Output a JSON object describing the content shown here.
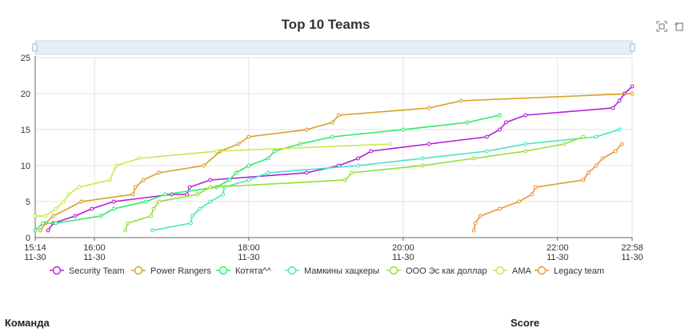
{
  "footer": {
    "team_header": "Команда",
    "score_header": "Score"
  },
  "toolbox": {
    "zoom_icon": "zoom-icon",
    "restore_icon": "restore-icon"
  },
  "chart_data": {
    "type": "line",
    "title": "Top 10 Teams",
    "xlabel": "",
    "ylabel": "",
    "xlim": [
      "2000-11-30 15:14",
      "2000-11-30 22:58"
    ],
    "ylim": [
      0,
      25
    ],
    "y_ticks": [
      0,
      5,
      10,
      15,
      20,
      25
    ],
    "x_ticks": [
      {
        "t": "2000-11-30 15:14",
        "label": [
          "15:14",
          "11-30"
        ]
      },
      {
        "t": "2000-11-30 16:00",
        "label": [
          "16:00",
          "11-30"
        ]
      },
      {
        "t": "2000-11-30 18:00",
        "label": [
          "18:00",
          "11-30"
        ]
      },
      {
        "t": "2000-11-30 20:00",
        "label": [
          "20:00",
          "11-30"
        ]
      },
      {
        "t": "2000-11-30 22:00",
        "label": [
          "22:00",
          "11-30"
        ]
      },
      {
        "t": "2000-11-30 22:58",
        "label": [
          "22:58",
          "11-30"
        ]
      }
    ],
    "grid": true,
    "legend_position": "bottom",
    "series": [
      {
        "name": "Security Team",
        "color": "#b31fd8",
        "points": [
          [
            "2000-11-30 15:24",
            1
          ],
          [
            "2000-11-30 15:28",
            2
          ],
          [
            "2000-11-30 15:45",
            3
          ],
          [
            "2000-11-30 15:58",
            4
          ],
          [
            "2000-11-30 16:15",
            5
          ],
          [
            "2000-11-30 17:00",
            6
          ],
          [
            "2000-11-30 17:12",
            6
          ],
          [
            "2000-11-30 17:14",
            7
          ],
          [
            "2000-11-30 17:30",
            8
          ],
          [
            "2000-11-30 18:45",
            9
          ],
          [
            "2000-11-30 19:10",
            10
          ],
          [
            "2000-11-30 19:25",
            11
          ],
          [
            "2000-11-30 19:35",
            12
          ],
          [
            "2000-11-30 20:20",
            13
          ],
          [
            "2000-11-30 21:05",
            14
          ],
          [
            "2000-11-30 21:15",
            15
          ],
          [
            "2000-11-30 21:20",
            16
          ],
          [
            "2000-11-30 21:35",
            17
          ],
          [
            "2000-11-30 22:43",
            18
          ],
          [
            "2000-11-30 22:48",
            19
          ],
          [
            "2000-11-30 22:52",
            20
          ],
          [
            "2000-11-30 22:58",
            21
          ]
        ]
      },
      {
        "name": "Power Rangers",
        "color": "#d9a020",
        "points": [
          [
            "2000-11-30 15:18",
            1
          ],
          [
            "2000-11-30 15:22",
            2
          ],
          [
            "2000-11-30 15:28",
            3
          ],
          [
            "2000-11-30 15:50",
            5
          ],
          [
            "2000-11-30 16:30",
            6
          ],
          [
            "2000-11-30 16:32",
            7
          ],
          [
            "2000-11-30 16:38",
            8
          ],
          [
            "2000-11-30 16:50",
            9
          ],
          [
            "2000-11-30 17:25",
            10
          ],
          [
            "2000-11-30 17:38",
            12
          ],
          [
            "2000-11-30 17:52",
            13
          ],
          [
            "2000-11-30 18:00",
            14
          ],
          [
            "2000-11-30 18:45",
            15
          ],
          [
            "2000-11-30 19:05",
            16
          ],
          [
            "2000-11-30 19:10",
            17
          ],
          [
            "2000-11-30 20:20",
            18
          ],
          [
            "2000-11-30 20:45",
            19
          ],
          [
            "2000-11-30 22:58",
            20
          ]
        ]
      },
      {
        "name": "Котята^^",
        "color": "#2ee96b",
        "points": [
          [
            "2000-11-30 15:14",
            1
          ],
          [
            "2000-11-30 15:20",
            2
          ],
          [
            "2000-11-30 15:30",
            2
          ],
          [
            "2000-11-30 16:05",
            3
          ],
          [
            "2000-11-30 16:15",
            4
          ],
          [
            "2000-11-30 16:40",
            5
          ],
          [
            "2000-11-30 16:55",
            6
          ],
          [
            "2000-11-30 17:35",
            7
          ],
          [
            "2000-11-30 17:45",
            8
          ],
          [
            "2000-11-30 17:50",
            9
          ],
          [
            "2000-11-30 18:00",
            10
          ],
          [
            "2000-11-30 18:15",
            11
          ],
          [
            "2000-11-30 18:20",
            12
          ],
          [
            "2000-11-30 18:40",
            13
          ],
          [
            "2000-11-30 19:05",
            14
          ],
          [
            "2000-11-30 20:00",
            15
          ],
          [
            "2000-11-30 20:50",
            16
          ],
          [
            "2000-11-30 21:15",
            17
          ]
        ]
      },
      {
        "name": "Мамкины хацкеры",
        "color": "#45e3c4",
        "points": [
          [
            "2000-11-30 16:45",
            1
          ],
          [
            "2000-11-30 17:15",
            2
          ],
          [
            "2000-11-30 17:16",
            3
          ],
          [
            "2000-11-30 17:22",
            4
          ],
          [
            "2000-11-30 17:30",
            5
          ],
          [
            "2000-11-30 17:40",
            6
          ],
          [
            "2000-11-30 17:41",
            7
          ],
          [
            "2000-11-30 18:00",
            8
          ],
          [
            "2000-11-30 18:15",
            9
          ],
          [
            "2000-11-30 19:25",
            10
          ],
          [
            "2000-11-30 20:15",
            11
          ],
          [
            "2000-11-30 21:05",
            12
          ],
          [
            "2000-11-30 21:35",
            13
          ],
          [
            "2000-11-30 22:30",
            14
          ],
          [
            "2000-11-30 22:48",
            15
          ]
        ]
      },
      {
        "name": "ООО Эс как доллар",
        "color": "#8fe033",
        "points": [
          [
            "2000-11-30 16:24",
            1
          ],
          [
            "2000-11-30 16:26",
            2
          ],
          [
            "2000-11-30 16:44",
            3
          ],
          [
            "2000-11-30 16:46",
            4
          ],
          [
            "2000-11-30 16:50",
            5
          ],
          [
            "2000-11-30 17:20",
            6
          ],
          [
            "2000-11-30 17:30",
            7
          ],
          [
            "2000-11-30 19:15",
            8
          ],
          [
            "2000-11-30 19:20",
            9
          ],
          [
            "2000-11-30 20:15",
            10
          ],
          [
            "2000-11-30 20:55",
            11
          ],
          [
            "2000-11-30 21:35",
            12
          ],
          [
            "2000-11-30 22:05",
            13
          ],
          [
            "2000-11-30 22:20",
            14
          ]
        ]
      },
      {
        "name": "AMA",
        "color": "#c6e94a",
        "points": [
          [
            "2000-11-30 15:14",
            3
          ],
          [
            "2000-11-30 15:22",
            3
          ],
          [
            "2000-11-30 15:30",
            4
          ],
          [
            "2000-11-30 15:36",
            5
          ],
          [
            "2000-11-30 15:40",
            6
          ],
          [
            "2000-11-30 15:48",
            7
          ],
          [
            "2000-11-30 16:12",
            8
          ],
          [
            "2000-11-30 16:17",
            10
          ],
          [
            "2000-11-30 16:35",
            11
          ],
          [
            "2000-11-30 17:35",
            12
          ],
          [
            "2000-11-30 19:50",
            13
          ]
        ]
      },
      {
        "name": "Legacy team",
        "color": "#e6982e",
        "points": [
          [
            "2000-11-30 20:55",
            1
          ],
          [
            "2000-11-30 20:56",
            2
          ],
          [
            "2000-11-30 21:00",
            3
          ],
          [
            "2000-11-30 21:15",
            4
          ],
          [
            "2000-11-30 21:30",
            5
          ],
          [
            "2000-11-30 21:40",
            6
          ],
          [
            "2000-11-30 21:43",
            7
          ],
          [
            "2000-11-30 22:20",
            8
          ],
          [
            "2000-11-30 22:24",
            9
          ],
          [
            "2000-11-30 22:30",
            10
          ],
          [
            "2000-11-30 22:35",
            11
          ],
          [
            "2000-11-30 22:45",
            12
          ],
          [
            "2000-11-30 22:50",
            13
          ]
        ]
      }
    ]
  }
}
